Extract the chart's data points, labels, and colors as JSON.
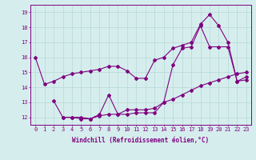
{
  "line1_x": [
    0,
    1,
    2,
    3,
    4,
    5,
    6,
    7,
    8,
    9,
    10,
    11,
    12,
    13,
    14,
    15,
    16,
    17,
    18,
    19,
    20,
    21,
    22,
    23
  ],
  "line1_y": [
    16.0,
    14.2,
    14.4,
    14.7,
    14.9,
    15.0,
    15.1,
    15.2,
    15.4,
    15.4,
    15.1,
    14.6,
    14.6,
    15.8,
    16.0,
    16.6,
    16.8,
    17.0,
    18.2,
    18.85,
    18.1,
    17.0,
    14.4,
    14.7
  ],
  "line2_x": [
    2,
    3,
    4,
    5,
    6,
    7,
    8,
    9,
    10,
    11,
    12,
    13,
    14,
    15,
    16,
    17,
    18,
    19,
    20,
    21,
    22,
    23
  ],
  "line2_y": [
    13.1,
    12.0,
    12.0,
    11.9,
    11.9,
    12.2,
    13.5,
    12.2,
    12.2,
    12.3,
    12.3,
    12.3,
    13.0,
    15.5,
    16.6,
    16.7,
    18.1,
    16.7,
    16.7,
    16.7,
    14.4,
    14.5
  ],
  "line3_x": [
    3,
    4,
    5,
    6,
    7,
    8,
    9,
    10,
    11,
    12,
    13,
    14,
    15,
    16,
    17,
    18,
    19,
    20,
    21,
    22,
    23
  ],
  "line3_y": [
    12.0,
    12.0,
    12.0,
    11.9,
    12.1,
    12.2,
    12.2,
    12.5,
    12.5,
    12.5,
    12.6,
    13.0,
    13.2,
    13.5,
    13.8,
    14.1,
    14.3,
    14.5,
    14.7,
    14.9,
    15.0
  ],
  "line_color": "#800080",
  "marker": "D",
  "markersize": 2.0,
  "linewidth": 0.8,
  "xlabel": "Windchill (Refroidissement éolien,°C)",
  "xlim": [
    -0.5,
    23.5
  ],
  "ylim": [
    11.5,
    19.5
  ],
  "yticks": [
    12,
    13,
    14,
    15,
    16,
    17,
    18,
    19
  ],
  "xticks": [
    0,
    1,
    2,
    3,
    4,
    5,
    6,
    7,
    8,
    9,
    10,
    11,
    12,
    13,
    14,
    15,
    16,
    17,
    18,
    19,
    20,
    21,
    22,
    23
  ],
  "bg_color": "#d5eeed",
  "grid_color": "#b8d8d8"
}
